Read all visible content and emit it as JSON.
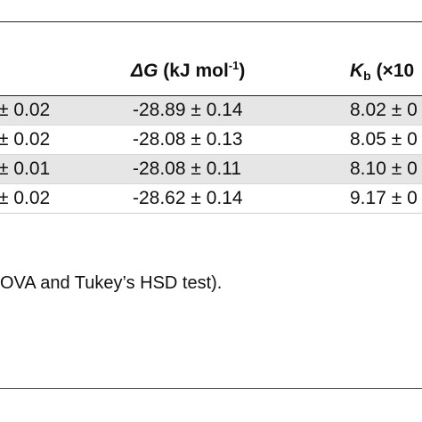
{
  "table": {
    "header": {
      "dg_symbol": "ΔG",
      "dg_unit": " (kJ mol",
      "dg_exp": "-1",
      "dg_close": ")",
      "kb_symbol": "K",
      "kb_sub": "b",
      "kb_rest": " (×10"
    },
    "rows": [
      {
        "a": "± 0.02",
        "dg": "-28.89 ± 0.14",
        "kb": "8.02 ± 0"
      },
      {
        "a": "± 0.02",
        "dg": "-28.08 ± 0.13",
        "kb": "8.05 ± 0"
      },
      {
        "a": "± 0.01",
        "dg": "-28.08 ± 0.11",
        "kb": "8.10 ± 0"
      },
      {
        "a": "± 0.02",
        "dg": "-28.62 ± 0.14",
        "kb": "9.17 ± 0"
      }
    ]
  },
  "footnote": "OVA and Tukey’s HSD test)."
}
